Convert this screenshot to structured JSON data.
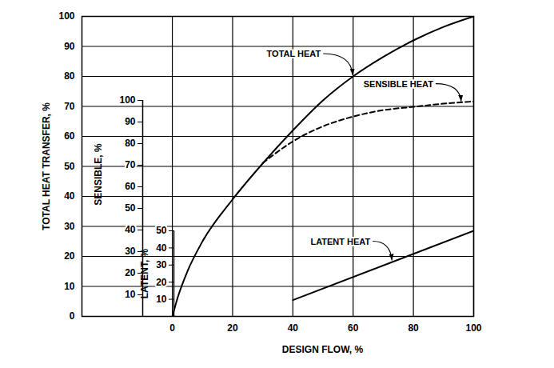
{
  "chart_data": {
    "type": "line",
    "x_label": "DESIGN FLOW, %",
    "y_label": "TOTAL HEAT TRANSFER, %",
    "y2_label": "SENSIBLE, %",
    "y3_label": "LATENT, %",
    "xlim": [
      -30,
      100
    ],
    "xticks": [
      0,
      20,
      40,
      60,
      80,
      100
    ],
    "ylim": [
      0,
      100
    ],
    "yticks": [
      0,
      10,
      20,
      30,
      40,
      50,
      60,
      70,
      80,
      90,
      100
    ],
    "y2lim": [
      0,
      100
    ],
    "y2ticks": [
      10,
      20,
      30,
      40,
      50,
      60,
      70,
      80,
      90,
      100
    ],
    "y3lim": [
      0,
      50
    ],
    "y3ticks": [
      10,
      20,
      30,
      40,
      50
    ],
    "grid": true,
    "series": [
      {
        "name": "TOTAL HEAT",
        "color": "#000000",
        "line_style": "solid",
        "x": [
          0,
          2,
          5,
          10,
          20,
          30,
          40,
          50,
          60,
          70,
          80,
          90,
          100
        ],
        "values": [
          0,
          7,
          15,
          25,
          39,
          51,
          62,
          72,
          80,
          86.5,
          92,
          96.5,
          100
        ],
        "label_at": {
          "x": 60,
          "y": 80
        }
      },
      {
        "name": "SENSIBLE HEAT",
        "color": "#000000",
        "line_style": "dashed",
        "axis": "y2",
        "x": [
          30,
          40,
          50,
          60,
          70,
          80,
          90,
          100
        ],
        "values": [
          71,
          81,
          88,
          92.5,
          95.5,
          97,
          98.5,
          99.5
        ],
        "label_at": {
          "x": 96,
          "y": 99
        }
      },
      {
        "name": "LATENT HEAT",
        "color": "#000000",
        "line_style": "solid",
        "axis": "y3",
        "x": [
          40,
          100
        ],
        "values": [
          9.5,
          50
        ],
        "label_at": {
          "x": 73,
          "y": 32
        }
      }
    ]
  }
}
